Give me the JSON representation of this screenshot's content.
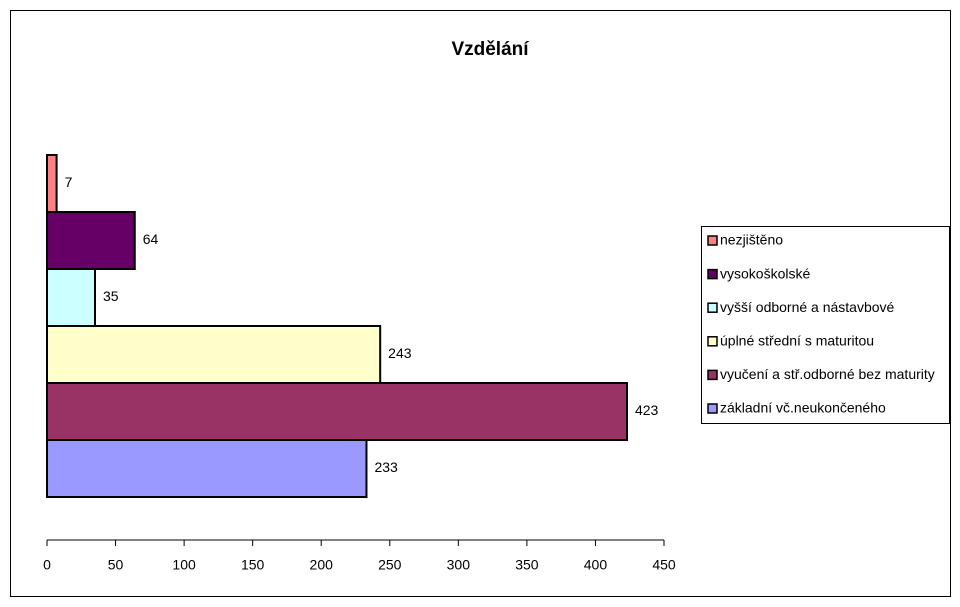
{
  "chart_data": {
    "type": "hbar",
    "title": "Vzdělání",
    "categories": [
      "základní vč.neukončeného",
      "vyučení a stř.odborné bez maturity",
      "úplné střední s maturitou",
      "vyšší odborné a nástavbové",
      "vysokoškolské",
      "nezjištěno"
    ],
    "values": [
      233,
      423,
      243,
      35,
      64,
      7
    ],
    "colors": [
      "#9999ff",
      "#993366",
      "#ffffcc",
      "#ccffff",
      "#660066",
      "#ff8080"
    ],
    "xlim": [
      0,
      450
    ],
    "xticks": [
      0,
      50,
      100,
      150,
      200,
      250,
      300,
      350,
      400,
      450
    ],
    "legend": "right"
  }
}
